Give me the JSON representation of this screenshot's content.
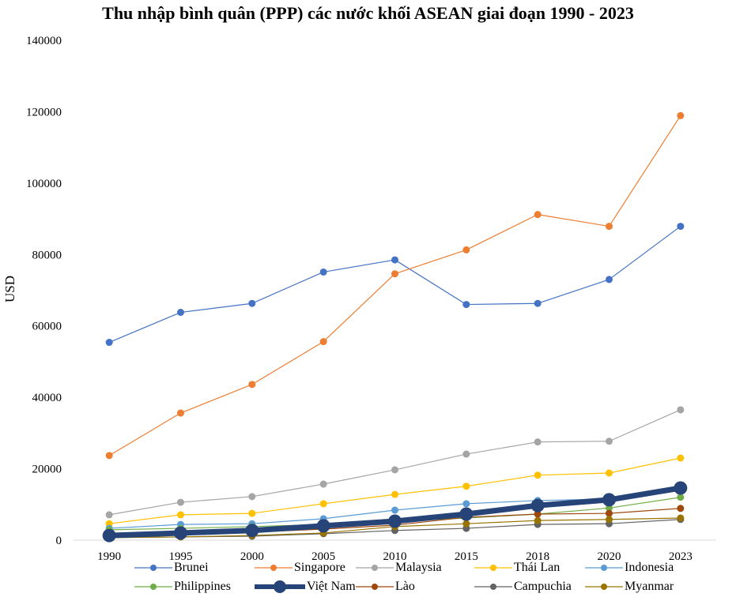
{
  "chart_data": {
    "type": "line",
    "title": "Thu nhập bình quân (PPP) các nước khối ASEAN giai đoạn 1990 - 2023",
    "xlabel": "",
    "ylabel": "USD",
    "ylim": [
      0,
      140000
    ],
    "yticks": [
      "0",
      "20000",
      "40000",
      "60000",
      "80000",
      "100000",
      "120000",
      "140000"
    ],
    "ytick_values": [
      0,
      20000,
      40000,
      60000,
      80000,
      100000,
      120000,
      140000
    ],
    "categories": [
      "1990",
      "1995",
      "2000",
      "2005",
      "2010",
      "2015",
      "2018",
      "2020",
      "2023"
    ],
    "grid": false,
    "legend_position": "bottom",
    "series": [
      {
        "name": "Brunei",
        "color": "#4472C4",
        "emphasis": false,
        "values": [
          55400,
          63800,
          66300,
          75100,
          78500,
          66000,
          66300,
          73000,
          87900
        ]
      },
      {
        "name": "Singapore",
        "color": "#ED7D31",
        "emphasis": false,
        "values": [
          23700,
          35600,
          43600,
          55600,
          74600,
          81300,
          91200,
          87900,
          118900
        ]
      },
      {
        "name": "Malaysia",
        "color": "#A5A5A5",
        "emphasis": false,
        "values": [
          7100,
          10600,
          12200,
          15700,
          19700,
          24100,
          27500,
          27700,
          36500
        ]
      },
      {
        "name": "Thái Lan",
        "color": "#FFC000",
        "emphasis": false,
        "values": [
          4600,
          7100,
          7500,
          10200,
          12800,
          15100,
          18200,
          18800,
          23000
        ]
      },
      {
        "name": "Indonesia",
        "color": "#5B9BD5",
        "emphasis": false,
        "values": [
          3300,
          4400,
          4600,
          6000,
          8400,
          10200,
          11100,
          11500,
          14000
        ]
      },
      {
        "name": "Philippines",
        "color": "#70AD47",
        "emphasis": false,
        "values": [
          2900,
          3300,
          3800,
          4400,
          5300,
          6200,
          7300,
          9000,
          12000
        ]
      },
      {
        "name": "Việt Nam",
        "color": "#264478",
        "emphasis": true,
        "values": [
          1300,
          2000,
          2700,
          4000,
          5300,
          7300,
          9700,
          11300,
          14600
        ]
      },
      {
        "name": "Lào",
        "color": "#9E480E",
        "emphasis": false,
        "values": [
          1100,
          1600,
          2200,
          3100,
          4200,
          6400,
          7300,
          7500,
          8900
        ]
      },
      {
        "name": "Campuchia",
        "color": "#636363",
        "emphasis": false,
        "values": [
          700,
          900,
          1100,
          1800,
          2700,
          3300,
          4400,
          4600,
          5800
        ]
      },
      {
        "name": "Myanmar",
        "color": "#997300",
        "emphasis": false,
        "values": [
          700,
          900,
          1300,
          2000,
          3800,
          4600,
          5500,
          5800,
          6200
        ]
      }
    ]
  }
}
